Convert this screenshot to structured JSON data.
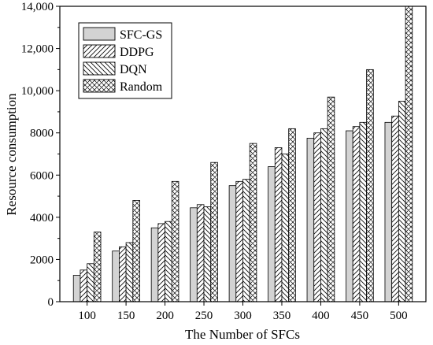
{
  "chart_data": {
    "type": "bar",
    "xlabel": "The Number of SFCs",
    "ylabel": "Resource consumption",
    "categories": [
      "100",
      "150",
      "200",
      "250",
      "300",
      "350",
      "400",
      "450",
      "500"
    ],
    "ylim": [
      0,
      14000
    ],
    "yticks": [
      0,
      2000,
      4000,
      6000,
      8000,
      10000,
      12000,
      14000
    ],
    "ytick_labels": [
      "0",
      "2000",
      "4000",
      "6000",
      "8000",
      "10,000",
      "12,000",
      "14,000"
    ],
    "grid": false,
    "legend_position": "top-left",
    "series": [
      {
        "name": "SFC-GS",
        "pattern": "solid",
        "values": [
          1250,
          2400,
          3500,
          4450,
          5500,
          6400,
          7750,
          8100,
          8500
        ]
      },
      {
        "name": "DDPG",
        "pattern": "forward-diagonal",
        "values": [
          1500,
          2600,
          3700,
          4600,
          5700,
          7300,
          8000,
          8300,
          8800
        ]
      },
      {
        "name": "DQN",
        "pattern": "backward-diagonal",
        "values": [
          1800,
          2800,
          3800,
          4500,
          5800,
          7000,
          8200,
          8500,
          9500
        ]
      },
      {
        "name": "Random",
        "pattern": "crosshatch",
        "values": [
          3300,
          4800,
          5700,
          6600,
          7500,
          8200,
          9700,
          11000,
          14000
        ]
      }
    ],
    "colors": {
      "bar_fill": "#d3d3d3",
      "stroke": "#000000"
    }
  }
}
